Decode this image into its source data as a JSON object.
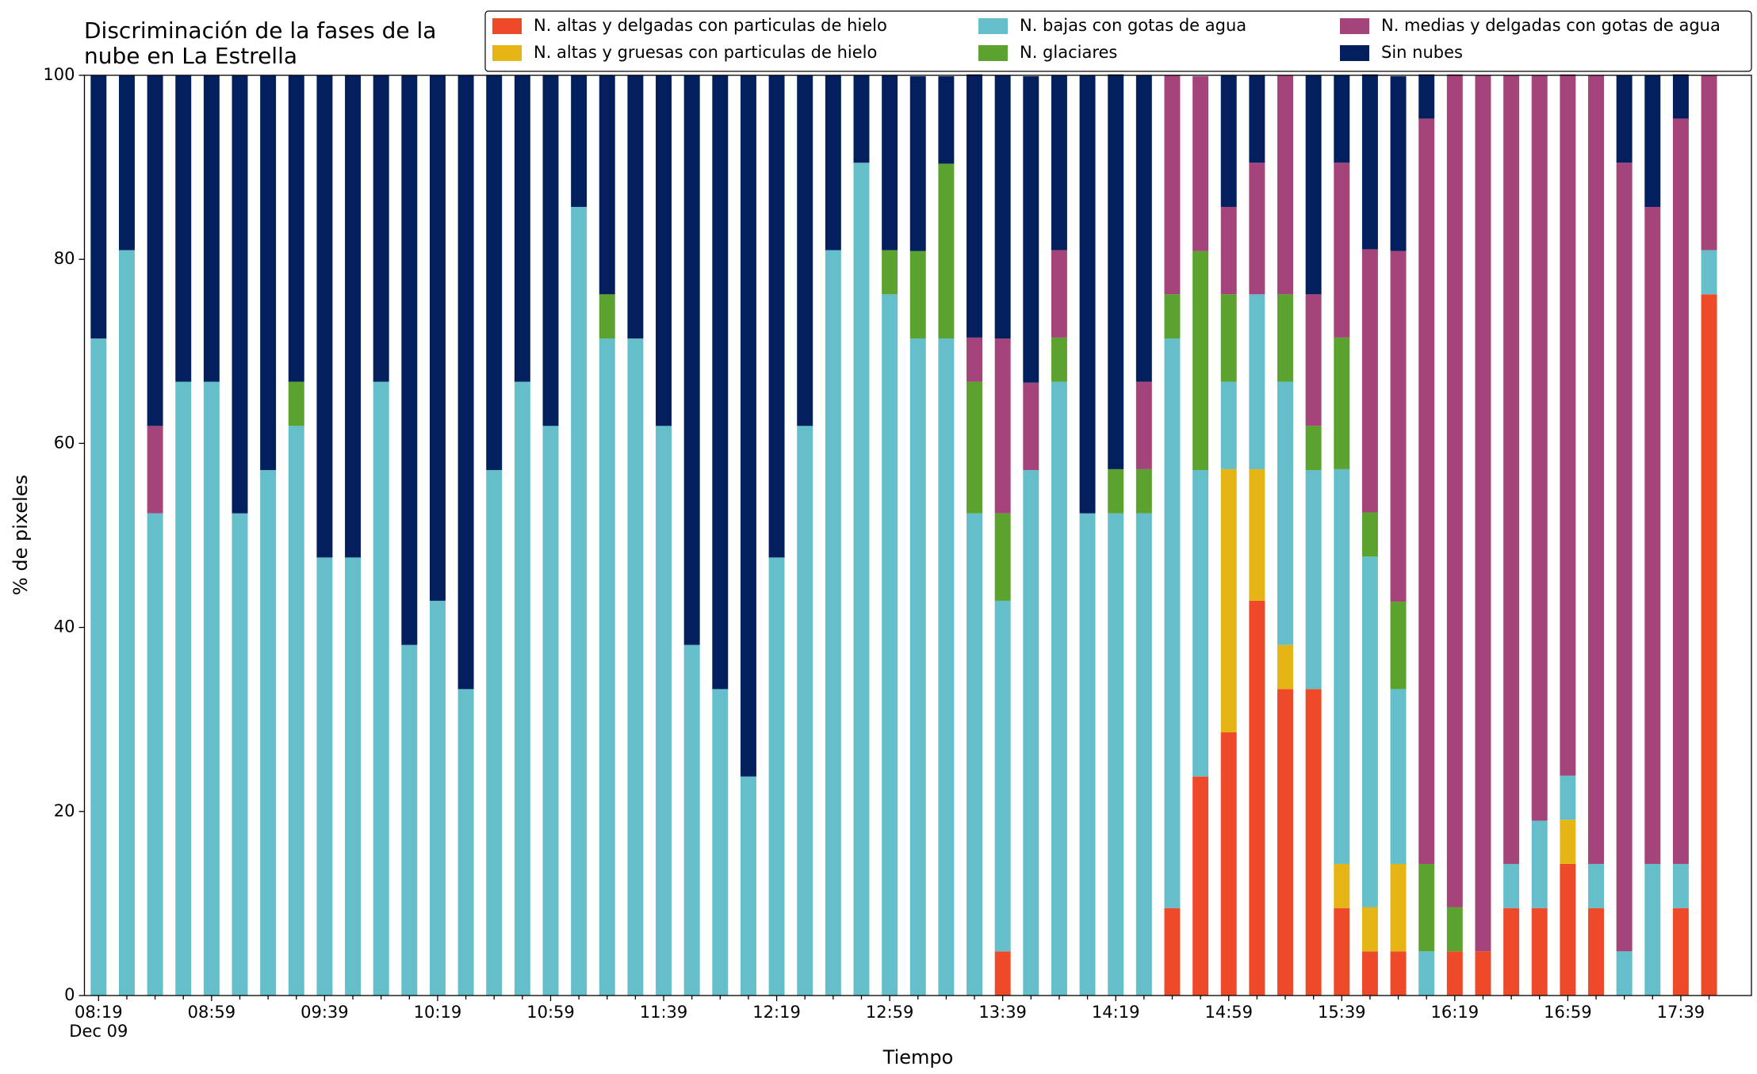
{
  "chart_data": {
    "type": "stacked_bar",
    "title": [
      "Discriminación de la fases de la",
      "nube en La Estrella"
    ],
    "xlabel": "Tiempo",
    "ylabel": "% de pixeles",
    "date_label": "Dec 09",
    "categories": [
      "08:19",
      null,
      null,
      null,
      "08:59",
      null,
      null,
      null,
      "09:39",
      null,
      null,
      null,
      "10:19",
      null,
      null,
      null,
      "10:59",
      null,
      null,
      null,
      "11:39",
      null,
      null,
      null,
      "12:19",
      null,
      null,
      null,
      "12:59",
      null,
      null,
      null,
      "13:39",
      null,
      null,
      null,
      "14:19",
      null,
      null,
      null,
      "14:59",
      null,
      null,
      null,
      "15:39",
      null,
      null,
      null,
      "16:19",
      null,
      null,
      null,
      "16:59",
      null,
      null,
      null,
      "17:39",
      null
    ],
    "ylim": [
      0,
      100
    ],
    "yticks": [
      0,
      20,
      40,
      60,
      80,
      100
    ],
    "legend": "top right",
    "series": [
      {
        "name": "N. altas y delgadas con particulas de hielo",
        "color": "#ee4a2a",
        "values": [
          0,
          0,
          0,
          0,
          0,
          0,
          0,
          0,
          0,
          0,
          0,
          0,
          0,
          0,
          0,
          0,
          0,
          0,
          0,
          0,
          0,
          0,
          0,
          0,
          0,
          0,
          0,
          0,
          0,
          0,
          0,
          0,
          4.8,
          0,
          0,
          0,
          0,
          0,
          9.5,
          23.8,
          28.6,
          42.9,
          33.3,
          33.3,
          9.5,
          4.8,
          4.8,
          0,
          4.8,
          4.8,
          9.5,
          9.5,
          14.3,
          9.5,
          0,
          0,
          9.5,
          76.2
        ]
      },
      {
        "name": "N. altas y gruesas con particulas de hielo",
        "color": "#e5b516",
        "values": [
          0,
          0,
          0,
          0,
          0,
          0,
          0,
          0,
          0,
          0,
          0,
          0,
          0,
          0,
          0,
          0,
          0,
          0,
          0,
          0,
          0,
          0,
          0,
          0,
          0,
          0,
          0,
          0,
          0,
          0,
          0,
          0,
          0,
          0,
          0,
          0,
          0,
          0,
          0,
          0,
          28.6,
          14.3,
          4.8,
          0,
          4.8,
          4.8,
          9.5,
          0,
          0,
          0,
          0,
          0,
          4.8,
          0,
          0,
          0,
          0,
          0
        ]
      },
      {
        "name": "N. bajas con gotas de agua",
        "color": "#65bfca",
        "values": [
          71.4,
          81.0,
          52.4,
          66.7,
          66.7,
          52.4,
          57.1,
          61.9,
          47.6,
          47.6,
          66.7,
          38.1,
          42.9,
          33.3,
          57.1,
          66.7,
          61.9,
          85.7,
          71.4,
          71.4,
          61.9,
          38.1,
          33.3,
          23.8,
          47.6,
          61.9,
          81.0,
          90.5,
          76.2,
          71.4,
          71.4,
          52.4,
          38.1,
          57.1,
          66.7,
          52.4,
          52.4,
          52.4,
          61.9,
          33.3,
          9.5,
          19.0,
          28.6,
          23.8,
          42.9,
          38.1,
          19.0,
          4.8,
          0,
          0,
          4.8,
          9.5,
          4.8,
          4.8,
          4.8,
          14.3,
          4.8,
          4.8
        ]
      },
      {
        "name": "N. glaciares",
        "color": "#5ba22f",
        "values": [
          0,
          0,
          0,
          0,
          0,
          0,
          0,
          4.8,
          0,
          0,
          0,
          0,
          0,
          0,
          0,
          0,
          0,
          0,
          4.8,
          0,
          0,
          0,
          0,
          0,
          0,
          0,
          0,
          0,
          4.8,
          9.5,
          19.0,
          14.3,
          9.5,
          0,
          4.8,
          0,
          4.8,
          4.8,
          4.8,
          23.8,
          9.5,
          0,
          9.5,
          4.8,
          14.3,
          4.8,
          9.5,
          9.5,
          4.8,
          0,
          0,
          0,
          0,
          0,
          0,
          0,
          0,
          0
        ]
      },
      {
        "name": "N. medias y delgadas con gotas de agua",
        "color": "#a4447a",
        "values": [
          0,
          0,
          9.5,
          0,
          0,
          0,
          0,
          0,
          0,
          0,
          0,
          0,
          0,
          0,
          0,
          0,
          0,
          0,
          0,
          0,
          0,
          0,
          0,
          0,
          0,
          0,
          0,
          0,
          0,
          0,
          0,
          4.8,
          19.0,
          9.5,
          9.5,
          0,
          0,
          9.5,
          23.8,
          19.0,
          9.5,
          14.3,
          23.8,
          14.3,
          19.0,
          28.6,
          38.1,
          81.0,
          90.5,
          95.2,
          85.7,
          81.0,
          76.2,
          85.7,
          85.7,
          71.4,
          81.0,
          19.0
        ]
      },
      {
        "name": "Sin nubes",
        "color": "#031f5e",
        "values": [
          28.6,
          19.0,
          38.1,
          33.3,
          33.3,
          47.6,
          42.9,
          33.3,
          52.4,
          52.4,
          33.3,
          61.9,
          57.1,
          66.7,
          42.9,
          33.3,
          38.1,
          14.3,
          23.8,
          28.6,
          38.1,
          61.9,
          66.7,
          76.2,
          52.4,
          38.1,
          19.0,
          9.5,
          19.0,
          19.0,
          9.5,
          28.6,
          28.6,
          33.3,
          19.0,
          47.6,
          42.9,
          33.3,
          0,
          0,
          14.3,
          9.5,
          0,
          23.8,
          9.5,
          19.0,
          19.0,
          4.8,
          0,
          0,
          0,
          0,
          0,
          0,
          9.5,
          14.3,
          4.8,
          0
        ]
      }
    ]
  }
}
